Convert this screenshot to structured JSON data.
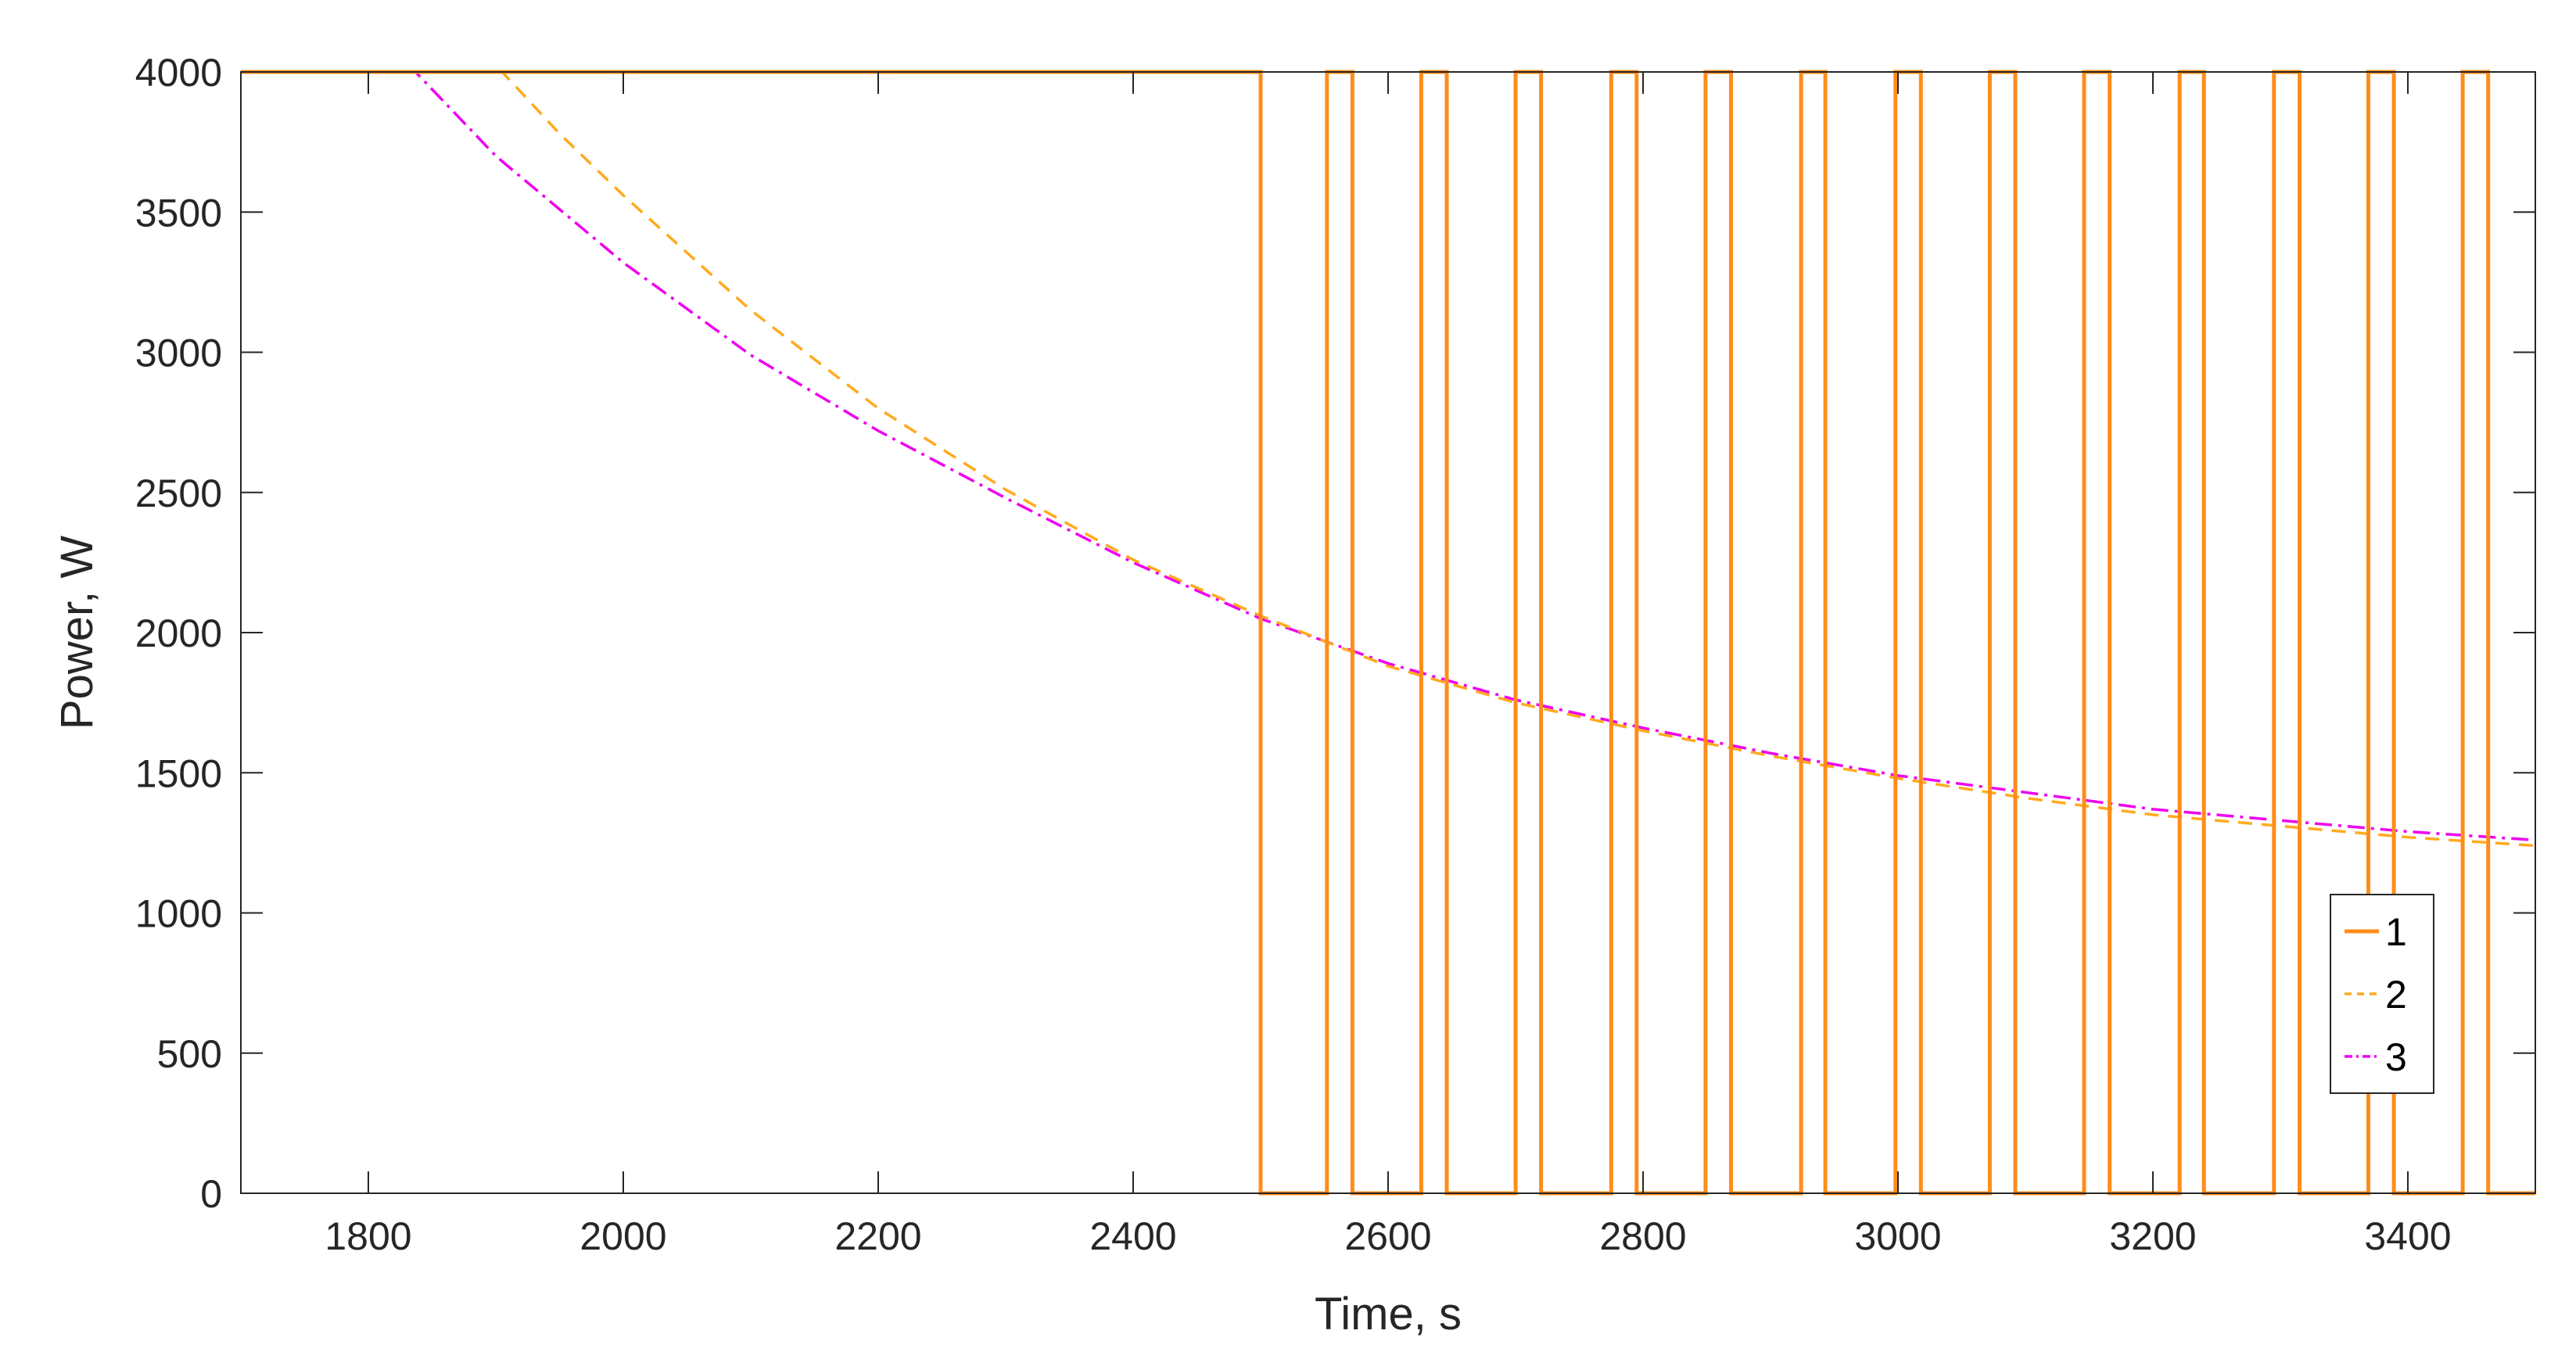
{
  "chart_data": {
    "type": "line",
    "title": "",
    "xlabel": "Time, s",
    "ylabel": "Power, W",
    "xlim": [
      1700,
      3500
    ],
    "ylim": [
      0,
      4000
    ],
    "xticks": [
      1800,
      2000,
      2200,
      2400,
      2600,
      2800,
      3000,
      3200,
      3400
    ],
    "yticks": [
      0,
      500,
      1000,
      1500,
      2000,
      2500,
      3000,
      3500,
      4000
    ],
    "grid": false,
    "legend_position": "lower-right",
    "series": [
      {
        "name": "1",
        "style": "solid",
        "color": "#ff8c1a",
        "x": [
          1700,
          2500,
          2500,
          2552,
          2552,
          2572,
          2572,
          2626,
          2626,
          2646,
          2646,
          2700,
          2700,
          2720,
          2720,
          2775,
          2775,
          2795,
          2795,
          2849,
          2849,
          2869,
          2869,
          2924,
          2924,
          2943,
          2943,
          2998,
          2998,
          3018,
          3018,
          3072,
          3072,
          3092,
          3092,
          3146,
          3146,
          3166,
          3166,
          3221,
          3221,
          3240,
          3240,
          3295,
          3295,
          3315,
          3315,
          3369,
          3369,
          3389,
          3389,
          3443,
          3443,
          3463,
          3463,
          3500
        ],
        "y": [
          4000,
          4000,
          0,
          0,
          4000,
          4000,
          0,
          0,
          4000,
          4000,
          0,
          0,
          4000,
          4000,
          0,
          0,
          4000,
          4000,
          0,
          0,
          4000,
          4000,
          0,
          0,
          4000,
          4000,
          0,
          0,
          4000,
          4000,
          0,
          0,
          4000,
          4000,
          0,
          0,
          4000,
          4000,
          0,
          0,
          4000,
          4000,
          0,
          0,
          4000,
          4000,
          0,
          0,
          4000,
          4000,
          0,
          0,
          4000,
          4000,
          0,
          0
        ]
      },
      {
        "name": "2",
        "style": "dashed",
        "color": "#ffaa1e",
        "x": [
          1700,
          1905,
          1950,
          2000,
          2100,
          2200,
          2300,
          2400,
          2500,
          2600,
          2700,
          2800,
          2900,
          3000,
          3100,
          3200,
          3300,
          3400,
          3500
        ],
        "y": [
          4000,
          4000,
          3780,
          3560,
          3150,
          2800,
          2510,
          2260,
          2060,
          1880,
          1750,
          1650,
          1560,
          1480,
          1410,
          1350,
          1310,
          1270,
          1240
        ]
      },
      {
        "name": "3",
        "style": "dash-dot",
        "color": "#ee00ee",
        "x": [
          1700,
          1837,
          1900,
          2000,
          2100,
          2200,
          2300,
          2400,
          2500,
          2600,
          2700,
          2800,
          2900,
          3000,
          3100,
          3200,
          3300,
          3400,
          3500
        ],
        "y": [
          4000,
          4000,
          3700,
          3320,
          2990,
          2720,
          2480,
          2250,
          2050,
          1890,
          1760,
          1660,
          1570,
          1490,
          1430,
          1370,
          1330,
          1290,
          1260
        ]
      }
    ]
  }
}
